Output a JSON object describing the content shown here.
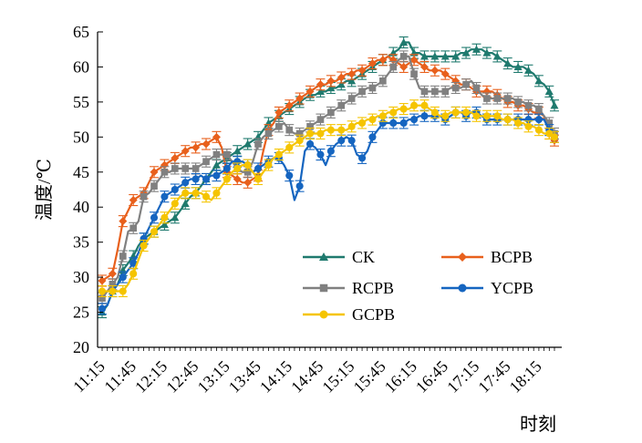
{
  "chart_data": {
    "type": "line",
    "title": "",
    "xlabel": "时刻",
    "ylabel": "温度/℃",
    "ylim": [
      20,
      65
    ],
    "yticks": [
      20,
      25,
      30,
      35,
      40,
      45,
      50,
      55,
      60,
      65
    ],
    "xtick_labels": [
      "11:15",
      "11:45",
      "12:15",
      "12:45",
      "13:15",
      "13:45",
      "14:15",
      "14:45",
      "15:15",
      "15:45",
      "16:15",
      "16:45",
      "17:15",
      "17:45",
      "18:15"
    ],
    "grid": false,
    "legend_position": "lower-right",
    "x": [
      "11:15",
      "11:20",
      "11:25",
      "11:30",
      "11:35",
      "11:40",
      "11:45",
      "11:50",
      "11:55",
      "12:00",
      "12:05",
      "12:10",
      "12:15",
      "12:20",
      "12:25",
      "12:30",
      "12:35",
      "12:40",
      "12:45",
      "12:50",
      "12:55",
      "13:00",
      "13:05",
      "13:10",
      "13:15",
      "13:20",
      "13:25",
      "13:30",
      "13:35",
      "13:40",
      "13:45",
      "13:50",
      "13:55",
      "14:00",
      "14:05",
      "14:10",
      "14:15",
      "14:20",
      "14:25",
      "14:30",
      "14:35",
      "14:40",
      "14:45",
      "14:50",
      "14:55",
      "15:00",
      "15:05",
      "15:10",
      "15:15",
      "15:20",
      "15:25",
      "15:30",
      "15:35",
      "15:40",
      "15:45",
      "15:50",
      "15:55",
      "16:00",
      "16:05",
      "16:10",
      "16:15",
      "16:20",
      "16:25",
      "16:30",
      "16:35",
      "16:40",
      "16:45",
      "16:50",
      "16:55",
      "17:00",
      "17:05",
      "17:10",
      "17:15",
      "17:20",
      "17:25",
      "17:30",
      "17:35",
      "17:40",
      "17:45",
      "17:50",
      "17:55",
      "18:00",
      "18:05",
      "18:10",
      "18:15",
      "18:20",
      "18:25",
      "18:30"
    ],
    "series": [
      {
        "name": "CK",
        "color": "#1f7a6e",
        "marker": "triangle",
        "values": [
          25.0,
          26.0,
          28.0,
          29.0,
          31.0,
          32.0,
          33.0,
          34.5,
          35.5,
          36.0,
          36.5,
          37.0,
          37.5,
          38.0,
          38.5,
          39.5,
          40.5,
          41.5,
          42.0,
          43.0,
          44.0,
          45.0,
          46.0,
          46.5,
          47.0,
          47.5,
          48.0,
          48.5,
          49.0,
          49.5,
          50.0,
          51.0,
          52.0,
          52.5,
          53.0,
          53.5,
          54.0,
          54.5,
          55.0,
          55.5,
          56.0,
          56.0,
          56.5,
          56.5,
          57.0,
          57.0,
          57.5,
          58.0,
          58.0,
          58.5,
          59.0,
          59.5,
          60.0,
          60.5,
          61.0,
          61.5,
          62.0,
          62.5,
          63.5,
          63.5,
          62.0,
          62.0,
          61.5,
          61.5,
          61.5,
          61.5,
          61.5,
          61.5,
          61.5,
          62.0,
          62.0,
          62.5,
          62.5,
          62.5,
          62.0,
          62.0,
          61.5,
          61.0,
          60.5,
          60.0,
          60.0,
          60.0,
          59.5,
          59.0,
          58.0,
          57.5,
          56.5,
          54.5
        ]
      },
      {
        "name": "BCPB",
        "color": "#e8601c",
        "marker": "diamond",
        "values": [
          29.5,
          30.0,
          30.5,
          34.0,
          38.0,
          39.5,
          41.0,
          41.5,
          42.0,
          43.5,
          45.0,
          45.5,
          46.0,
          46.5,
          47.0,
          47.5,
          48.0,
          48.5,
          48.5,
          49.0,
          49.0,
          49.5,
          50.0,
          48.5,
          45.0,
          44.5,
          44.0,
          43.5,
          43.5,
          44.0,
          44.5,
          48.0,
          51.0,
          52.0,
          53.5,
          54.0,
          54.5,
          55.0,
          55.5,
          56.0,
          56.5,
          57.0,
          57.5,
          57.5,
          58.0,
          58.0,
          58.5,
          59.0,
          59.0,
          59.5,
          59.5,
          60.0,
          60.5,
          61.0,
          61.0,
          61.5,
          61.0,
          60.5,
          60.0,
          60.5,
          61.0,
          60.5,
          60.0,
          59.5,
          59.5,
          59.5,
          59.0,
          58.5,
          58.0,
          57.5,
          57.5,
          57.0,
          56.5,
          56.5,
          56.5,
          56.5,
          56.0,
          55.5,
          55.0,
          55.0,
          54.5,
          54.5,
          54.0,
          53.5,
          53.5,
          53.0,
          50.5,
          49.5
        ]
      },
      {
        "name": "RCPB",
        "color": "#808080",
        "marker": "square",
        "values": [
          27.0,
          28.0,
          29.0,
          30.0,
          33.0,
          36.5,
          37.0,
          38.0,
          41.5,
          42.0,
          43.0,
          44.0,
          45.0,
          45.0,
          45.5,
          45.5,
          45.5,
          45.5,
          45.5,
          46.0,
          46.5,
          47.0,
          47.5,
          47.5,
          47.5,
          46.5,
          45.5,
          45.0,
          45.0,
          46.5,
          49.0,
          50.0,
          50.5,
          51.0,
          51.5,
          52.0,
          51.0,
          50.5,
          50.5,
          51.0,
          51.5,
          52.0,
          52.5,
          53.0,
          53.5,
          54.0,
          54.5,
          55.0,
          55.5,
          56.0,
          56.5,
          57.0,
          57.0,
          57.5,
          58.0,
          59.0,
          60.0,
          61.0,
          61.5,
          61.5,
          59.0,
          57.0,
          56.5,
          56.5,
          56.5,
          56.5,
          56.5,
          57.0,
          57.0,
          57.0,
          57.5,
          58.0,
          57.0,
          56.0,
          55.5,
          55.5,
          55.5,
          55.5,
          55.5,
          55.5,
          55.0,
          55.0,
          54.5,
          54.5,
          54.0,
          53.0,
          52.0,
          50.5
        ]
      },
      {
        "name": "YCPB",
        "color": "#1565c0",
        "marker": "circle",
        "values": [
          25.5,
          26.0,
          28.0,
          29.0,
          30.0,
          31.0,
          32.0,
          33.5,
          35.5,
          37.0,
          38.5,
          40.0,
          41.5,
          42.0,
          42.5,
          43.0,
          43.5,
          44.0,
          44.0,
          44.5,
          44.0,
          44.5,
          44.5,
          45.0,
          45.5,
          46.5,
          46.5,
          46.5,
          46.0,
          45.0,
          45.5,
          46.0,
          46.5,
          47.0,
          47.0,
          46.0,
          44.5,
          41.0,
          43.0,
          48.0,
          49.0,
          48.5,
          47.5,
          46.0,
          48.0,
          49.0,
          49.5,
          50.0,
          49.5,
          47.5,
          47.0,
          48.0,
          50.0,
          51.0,
          52.0,
          52.0,
          52.0,
          52.0,
          52.0,
          52.5,
          52.5,
          53.0,
          53.0,
          53.0,
          53.0,
          53.0,
          52.5,
          53.0,
          53.5,
          53.5,
          53.0,
          53.5,
          53.5,
          53.0,
          52.5,
          52.5,
          52.5,
          52.5,
          52.5,
          52.5,
          52.5,
          52.5,
          52.5,
          52.5,
          52.5,
          52.5,
          51.0,
          50.0
        ]
      },
      {
        "name": "GCPB",
        "color": "#f5c400",
        "marker": "circle",
        "values": [
          28.0,
          28.0,
          28.0,
          28.0,
          28.0,
          29.0,
          30.5,
          32.5,
          34.5,
          35.5,
          36.5,
          37.5,
          38.5,
          39.5,
          40.5,
          41.5,
          42.0,
          42.0,
          42.0,
          42.0,
          41.5,
          41.0,
          42.0,
          43.0,
          44.0,
          45.0,
          45.5,
          46.0,
          46.0,
          45.0,
          44.0,
          45.0,
          46.0,
          47.0,
          47.5,
          48.0,
          48.5,
          49.0,
          49.5,
          50.0,
          50.5,
          50.5,
          50.5,
          51.0,
          51.0,
          51.0,
          51.0,
          51.0,
          51.5,
          52.0,
          52.0,
          52.5,
          52.5,
          53.0,
          53.0,
          53.5,
          53.5,
          54.0,
          54.0,
          54.0,
          54.5,
          54.5,
          54.5,
          54.0,
          53.5,
          53.0,
          53.0,
          53.5,
          53.5,
          53.5,
          53.5,
          53.5,
          53.0,
          53.0,
          53.0,
          53.0,
          53.0,
          52.5,
          52.5,
          52.5,
          52.0,
          52.0,
          51.5,
          51.5,
          51.0,
          50.5,
          50.5,
          50.0
        ]
      }
    ]
  }
}
